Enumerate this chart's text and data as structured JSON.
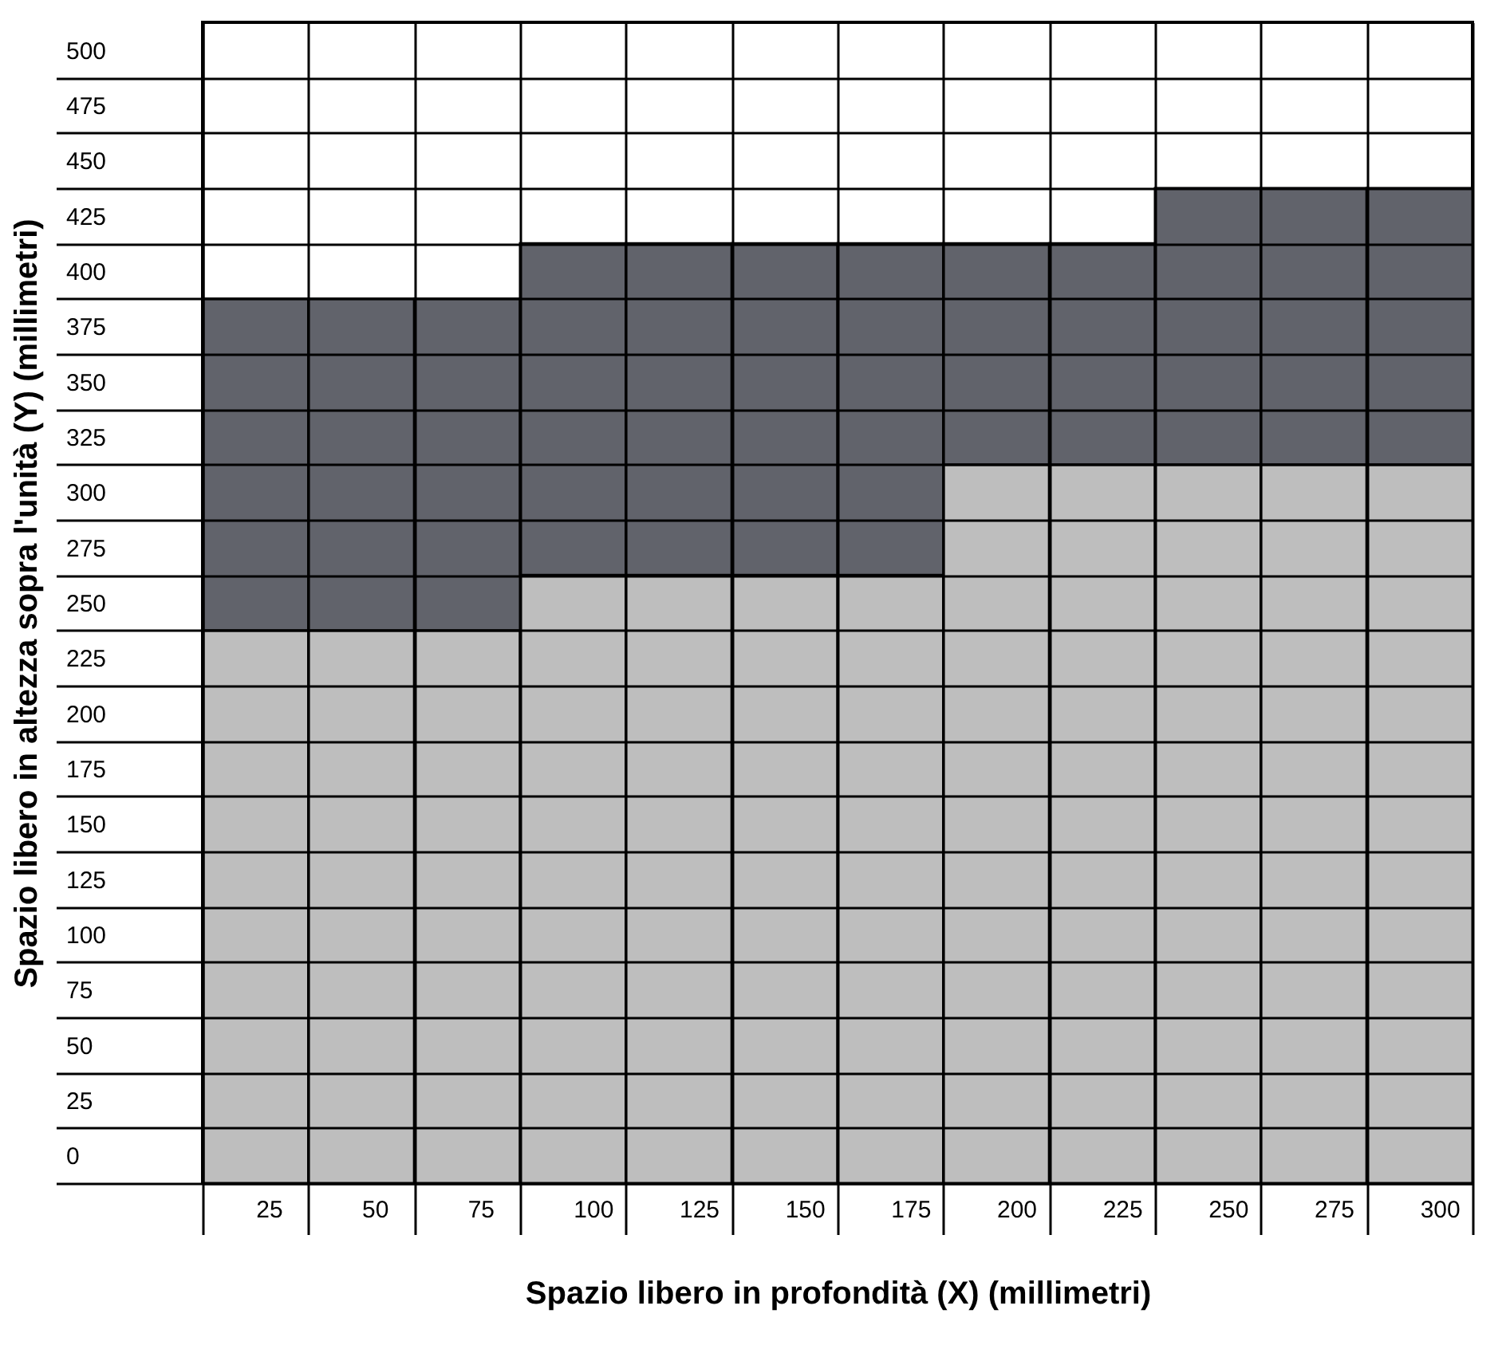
{
  "chart_data": {
    "type": "bar",
    "stacked": true,
    "grid": true,
    "xlabel": "Spazio libero in profondità (X) (millimetri)",
    "ylabel": "Spazio libero in altezza sopra l'unità (Y) (millimetri)",
    "categories": [
      "25",
      "50",
      "75",
      "100",
      "125",
      "150",
      "175",
      "200",
      "225",
      "250",
      "275",
      "300"
    ],
    "series": [
      {
        "color": "#bebebe",
        "values": [
          250,
          250,
          250,
          275,
          275,
          275,
          275,
          325,
          325,
          325,
          325,
          325
        ]
      },
      {
        "color": "#61636b",
        "values": [
          150,
          150,
          150,
          150,
          150,
          150,
          150,
          100,
          100,
          125,
          125,
          125
        ]
      }
    ],
    "ylim": [
      0,
      525
    ],
    "yticks": [
      0,
      25,
      50,
      75,
      100,
      125,
      150,
      175,
      200,
      225,
      250,
      275,
      300,
      325,
      350,
      375,
      400,
      425,
      450,
      475,
      500
    ]
  }
}
